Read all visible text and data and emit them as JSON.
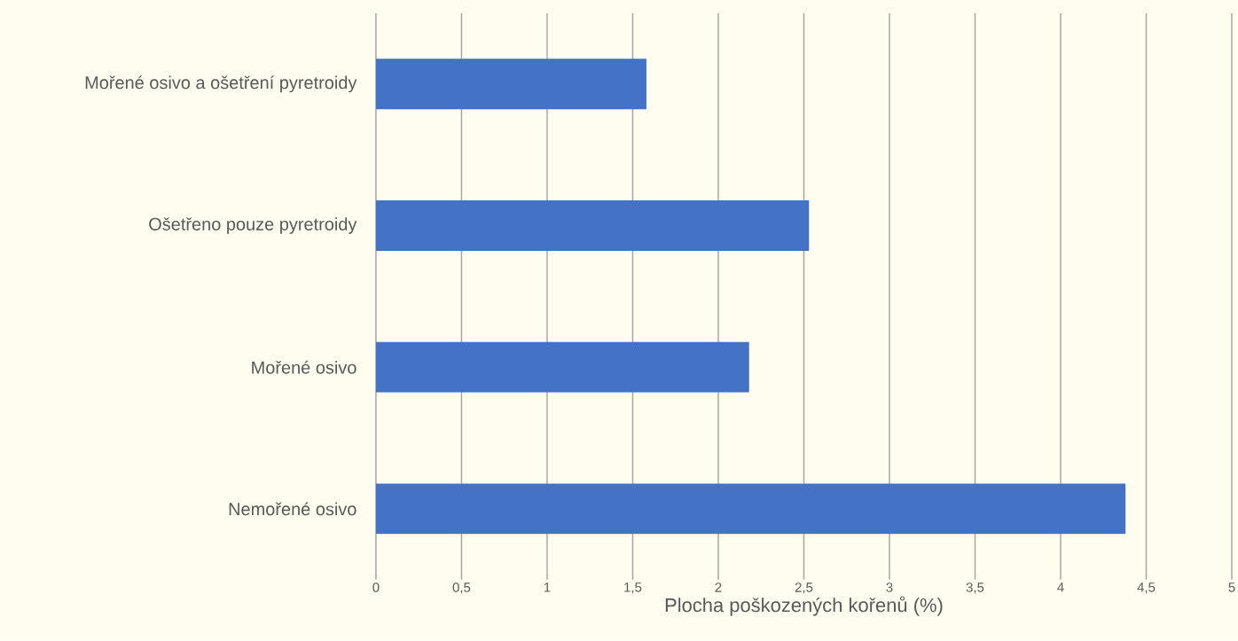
{
  "chart_data": {
    "type": "bar",
    "orientation": "horizontal",
    "xlabel": "Plocha poškozených kořenů (%)",
    "categories": [
      "Mořené osivo a ošetření pyretroidy",
      "Ošetřeno pouze pyretroidy",
      "Mořené osivo",
      "Nemořené osivo"
    ],
    "values": [
      1.58,
      2.53,
      2.18,
      4.38
    ],
    "color": "#4472c4",
    "xlim": [
      0,
      5
    ],
    "xticks": [
      0,
      {
        "value": 0.5,
        "label": "0,5"
      },
      1,
      {
        "value": 1.5,
        "label": "1,5"
      },
      2,
      {
        "value": 2.5,
        "label": "2,5"
      },
      3,
      {
        "value": 3.5,
        "label": "3,5"
      },
      4,
      {
        "value": 4.5,
        "label": "4,5"
      },
      5
    ],
    "grid": "x"
  }
}
